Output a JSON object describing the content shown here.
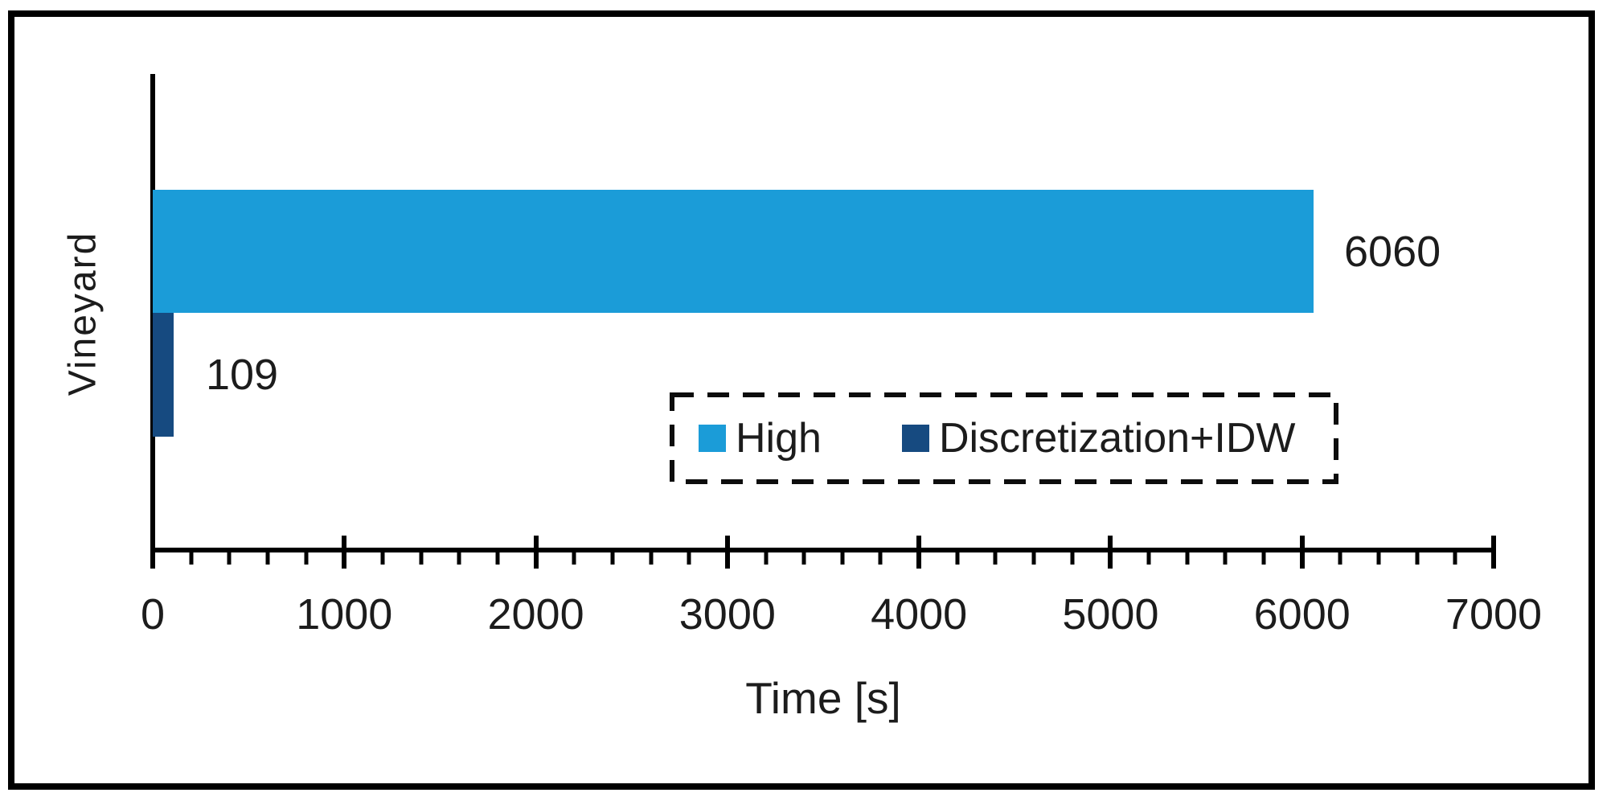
{
  "figure": {
    "background_color": "#ffffff",
    "frame_color": "#000000",
    "text_color": "#1c1c1c"
  },
  "chart_data": {
    "type": "bar",
    "orientation": "horizontal",
    "title": "",
    "xlabel": "Time [s]",
    "ylabel": "Vineyard",
    "categories": [
      "Vineyard"
    ],
    "series": [
      {
        "name": "High",
        "values": [
          6060
        ],
        "color": "#1B9CD8"
      },
      {
        "name": "Discretization+IDW",
        "values": [
          109
        ],
        "color": "#164A80"
      }
    ],
    "data_labels": [
      "6060",
      "109"
    ],
    "xlim": [
      0,
      7000
    ],
    "x_major_ticks": [
      0,
      1000,
      2000,
      3000,
      4000,
      5000,
      6000,
      7000
    ],
    "x_minor_tick_interval": 200,
    "grid": false,
    "legend": {
      "entries": [
        "High",
        "Discretization+IDW"
      ],
      "style": "dashed-border-box",
      "position": "inside-lower-right"
    }
  }
}
